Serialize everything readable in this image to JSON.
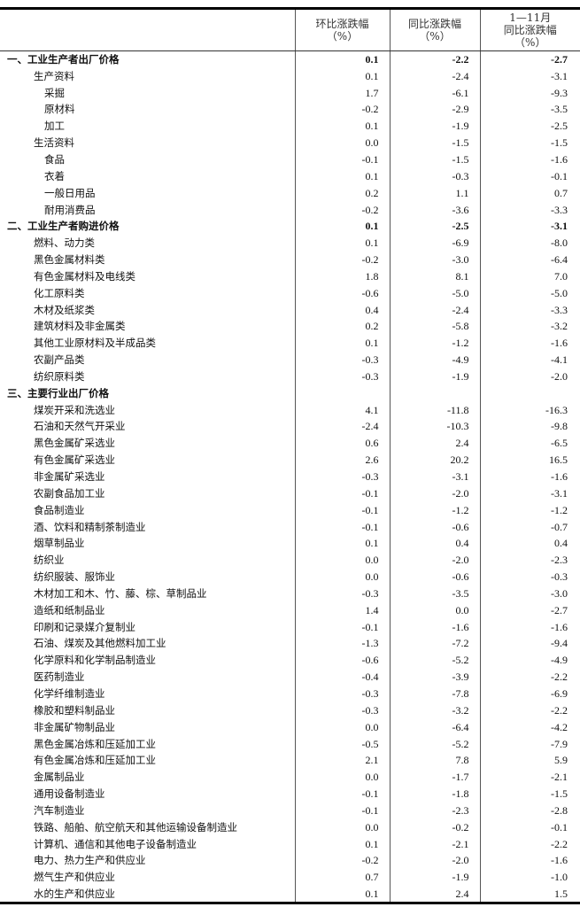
{
  "header": {
    "col1": [
      "环比涨跌幅",
      "（%）"
    ],
    "col2": [
      "同比涨跌幅",
      "（%）"
    ],
    "col3": [
      "1—11月",
      "同比涨跌幅",
      "（%）"
    ]
  },
  "rows": [
    {
      "label": "一、工业生产者出厂价格",
      "mom": "0.1",
      "yoy": "-2.2",
      "ytd": "-2.7",
      "level": 0,
      "bold": true
    },
    {
      "label": "生产资料",
      "mom": "0.1",
      "yoy": "-2.4",
      "ytd": "-3.1",
      "level": 1
    },
    {
      "label": "采掘",
      "mom": "1.7",
      "yoy": "-6.1",
      "ytd": "-9.3",
      "level": 2
    },
    {
      "label": "原材料",
      "mom": "-0.2",
      "yoy": "-2.9",
      "ytd": "-3.5",
      "level": 2
    },
    {
      "label": "加工",
      "mom": "0.1",
      "yoy": "-1.9",
      "ytd": "-2.5",
      "level": 2
    },
    {
      "label": "生活资料",
      "mom": "0.0",
      "yoy": "-1.5",
      "ytd": "-1.5",
      "level": 1
    },
    {
      "label": "食品",
      "mom": "-0.1",
      "yoy": "-1.5",
      "ytd": "-1.6",
      "level": 2
    },
    {
      "label": "衣着",
      "mom": "0.1",
      "yoy": "-0.3",
      "ytd": "-0.1",
      "level": 2
    },
    {
      "label": "一般日用品",
      "mom": "0.2",
      "yoy": "1.1",
      "ytd": "0.7",
      "level": 2
    },
    {
      "label": "耐用消费品",
      "mom": "-0.2",
      "yoy": "-3.6",
      "ytd": "-3.3",
      "level": 2
    },
    {
      "label": "二、工业生产者购进价格",
      "mom": "0.1",
      "yoy": "-2.5",
      "ytd": "-3.1",
      "level": 0,
      "bold": true
    },
    {
      "label": "燃料、动力类",
      "mom": "0.1",
      "yoy": "-6.9",
      "ytd": "-8.0",
      "level": 1
    },
    {
      "label": "黑色金属材料类",
      "mom": "-0.2",
      "yoy": "-3.0",
      "ytd": "-6.4",
      "level": 1
    },
    {
      "label": "有色金属材料及电线类",
      "mom": "1.8",
      "yoy": "8.1",
      "ytd": "7.0",
      "level": 1
    },
    {
      "label": "化工原料类",
      "mom": "-0.6",
      "yoy": "-5.0",
      "ytd": "-5.0",
      "level": 1
    },
    {
      "label": "木材及纸浆类",
      "mom": "0.4",
      "yoy": "-2.4",
      "ytd": "-3.3",
      "level": 1
    },
    {
      "label": "建筑材料及非金属类",
      "mom": "0.2",
      "yoy": "-5.8",
      "ytd": "-3.2",
      "level": 1
    },
    {
      "label": "其他工业原材料及半成品类",
      "mom": "0.1",
      "yoy": "-1.2",
      "ytd": "-1.6",
      "level": 1
    },
    {
      "label": "农副产品类",
      "mom": "-0.3",
      "yoy": "-4.9",
      "ytd": "-4.1",
      "level": 1
    },
    {
      "label": "纺织原料类",
      "mom": "-0.3",
      "yoy": "-1.9",
      "ytd": "-2.0",
      "level": 1
    },
    {
      "label": "三、主要行业出厂价格",
      "mom": "",
      "yoy": "",
      "ytd": "",
      "level": 0,
      "bold": true
    },
    {
      "label": "煤炭开采和洗选业",
      "mom": "4.1",
      "yoy": "-11.8",
      "ytd": "-16.3",
      "level": 1
    },
    {
      "label": "石油和天然气开采业",
      "mom": "-2.4",
      "yoy": "-10.3",
      "ytd": "-9.8",
      "level": 1
    },
    {
      "label": "黑色金属矿采选业",
      "mom": "0.6",
      "yoy": "2.4",
      "ytd": "-6.5",
      "level": 1
    },
    {
      "label": "有色金属矿采选业",
      "mom": "2.6",
      "yoy": "20.2",
      "ytd": "16.5",
      "level": 1
    },
    {
      "label": "非金属矿采选业",
      "mom": "-0.3",
      "yoy": "-3.1",
      "ytd": "-1.6",
      "level": 1
    },
    {
      "label": "农副食品加工业",
      "mom": "-0.1",
      "yoy": "-2.0",
      "ytd": "-3.1",
      "level": 1
    },
    {
      "label": "食品制造业",
      "mom": "-0.1",
      "yoy": "-1.2",
      "ytd": "-1.2",
      "level": 1
    },
    {
      "label": "酒、饮料和精制茶制造业",
      "mom": "-0.1",
      "yoy": "-0.6",
      "ytd": "-0.7",
      "level": 1
    },
    {
      "label": "烟草制品业",
      "mom": "0.1",
      "yoy": "0.4",
      "ytd": "0.4",
      "level": 1
    },
    {
      "label": "纺织业",
      "mom": "0.0",
      "yoy": "-2.0",
      "ytd": "-2.3",
      "level": 1
    },
    {
      "label": "纺织服装、服饰业",
      "mom": "0.0",
      "yoy": "-0.6",
      "ytd": "-0.3",
      "level": 1
    },
    {
      "label": "木材加工和木、竹、藤、棕、草制品业",
      "mom": "-0.3",
      "yoy": "-3.5",
      "ytd": "-3.0",
      "level": 1
    },
    {
      "label": "造纸和纸制品业",
      "mom": "1.4",
      "yoy": "0.0",
      "ytd": "-2.7",
      "level": 1
    },
    {
      "label": "印刷和记录媒介复制业",
      "mom": "-0.1",
      "yoy": "-1.6",
      "ytd": "-1.6",
      "level": 1
    },
    {
      "label": "石油、煤炭及其他燃料加工业",
      "mom": "-1.3",
      "yoy": "-7.2",
      "ytd": "-9.4",
      "level": 1
    },
    {
      "label": "化学原料和化学制品制造业",
      "mom": "-0.6",
      "yoy": "-5.2",
      "ytd": "-4.9",
      "level": 1
    },
    {
      "label": "医药制造业",
      "mom": "-0.4",
      "yoy": "-3.9",
      "ytd": "-2.2",
      "level": 1
    },
    {
      "label": "化学纤维制造业",
      "mom": "-0.3",
      "yoy": "-7.8",
      "ytd": "-6.9",
      "level": 1
    },
    {
      "label": "橡胶和塑料制品业",
      "mom": "-0.3",
      "yoy": "-3.2",
      "ytd": "-2.2",
      "level": 1
    },
    {
      "label": "非金属矿物制品业",
      "mom": "0.0",
      "yoy": "-6.4",
      "ytd": "-4.2",
      "level": 1
    },
    {
      "label": "黑色金属冶炼和压延加工业",
      "mom": "-0.5",
      "yoy": "-5.2",
      "ytd": "-7.9",
      "level": 1
    },
    {
      "label": "有色金属冶炼和压延加工业",
      "mom": "2.1",
      "yoy": "7.8",
      "ytd": "5.9",
      "level": 1
    },
    {
      "label": "金属制品业",
      "mom": "0.0",
      "yoy": "-1.7",
      "ytd": "-2.1",
      "level": 1
    },
    {
      "label": "通用设备制造业",
      "mom": "-0.1",
      "yoy": "-1.8",
      "ytd": "-1.5",
      "level": 1
    },
    {
      "label": "汽车制造业",
      "mom": "-0.1",
      "yoy": "-2.3",
      "ytd": "-2.8",
      "level": 1
    },
    {
      "label": "铁路、船舶、航空航天和其他运输设备制造业",
      "mom": "0.0",
      "yoy": "-0.2",
      "ytd": "-0.1",
      "level": 1
    },
    {
      "label": "计算机、通信和其他电子设备制造业",
      "mom": "0.1",
      "yoy": "-2.1",
      "ytd": "-2.2",
      "level": 1
    },
    {
      "label": "电力、热力生产和供应业",
      "mom": "-0.2",
      "yoy": "-2.0",
      "ytd": "-1.6",
      "level": 1
    },
    {
      "label": "燃气生产和供应业",
      "mom": "0.7",
      "yoy": "-1.9",
      "ytd": "-1.0",
      "level": 1
    },
    {
      "label": "水的生产和供应业",
      "mom": "0.1",
      "yoy": "2.4",
      "ytd": "1.5",
      "level": 1
    }
  ]
}
